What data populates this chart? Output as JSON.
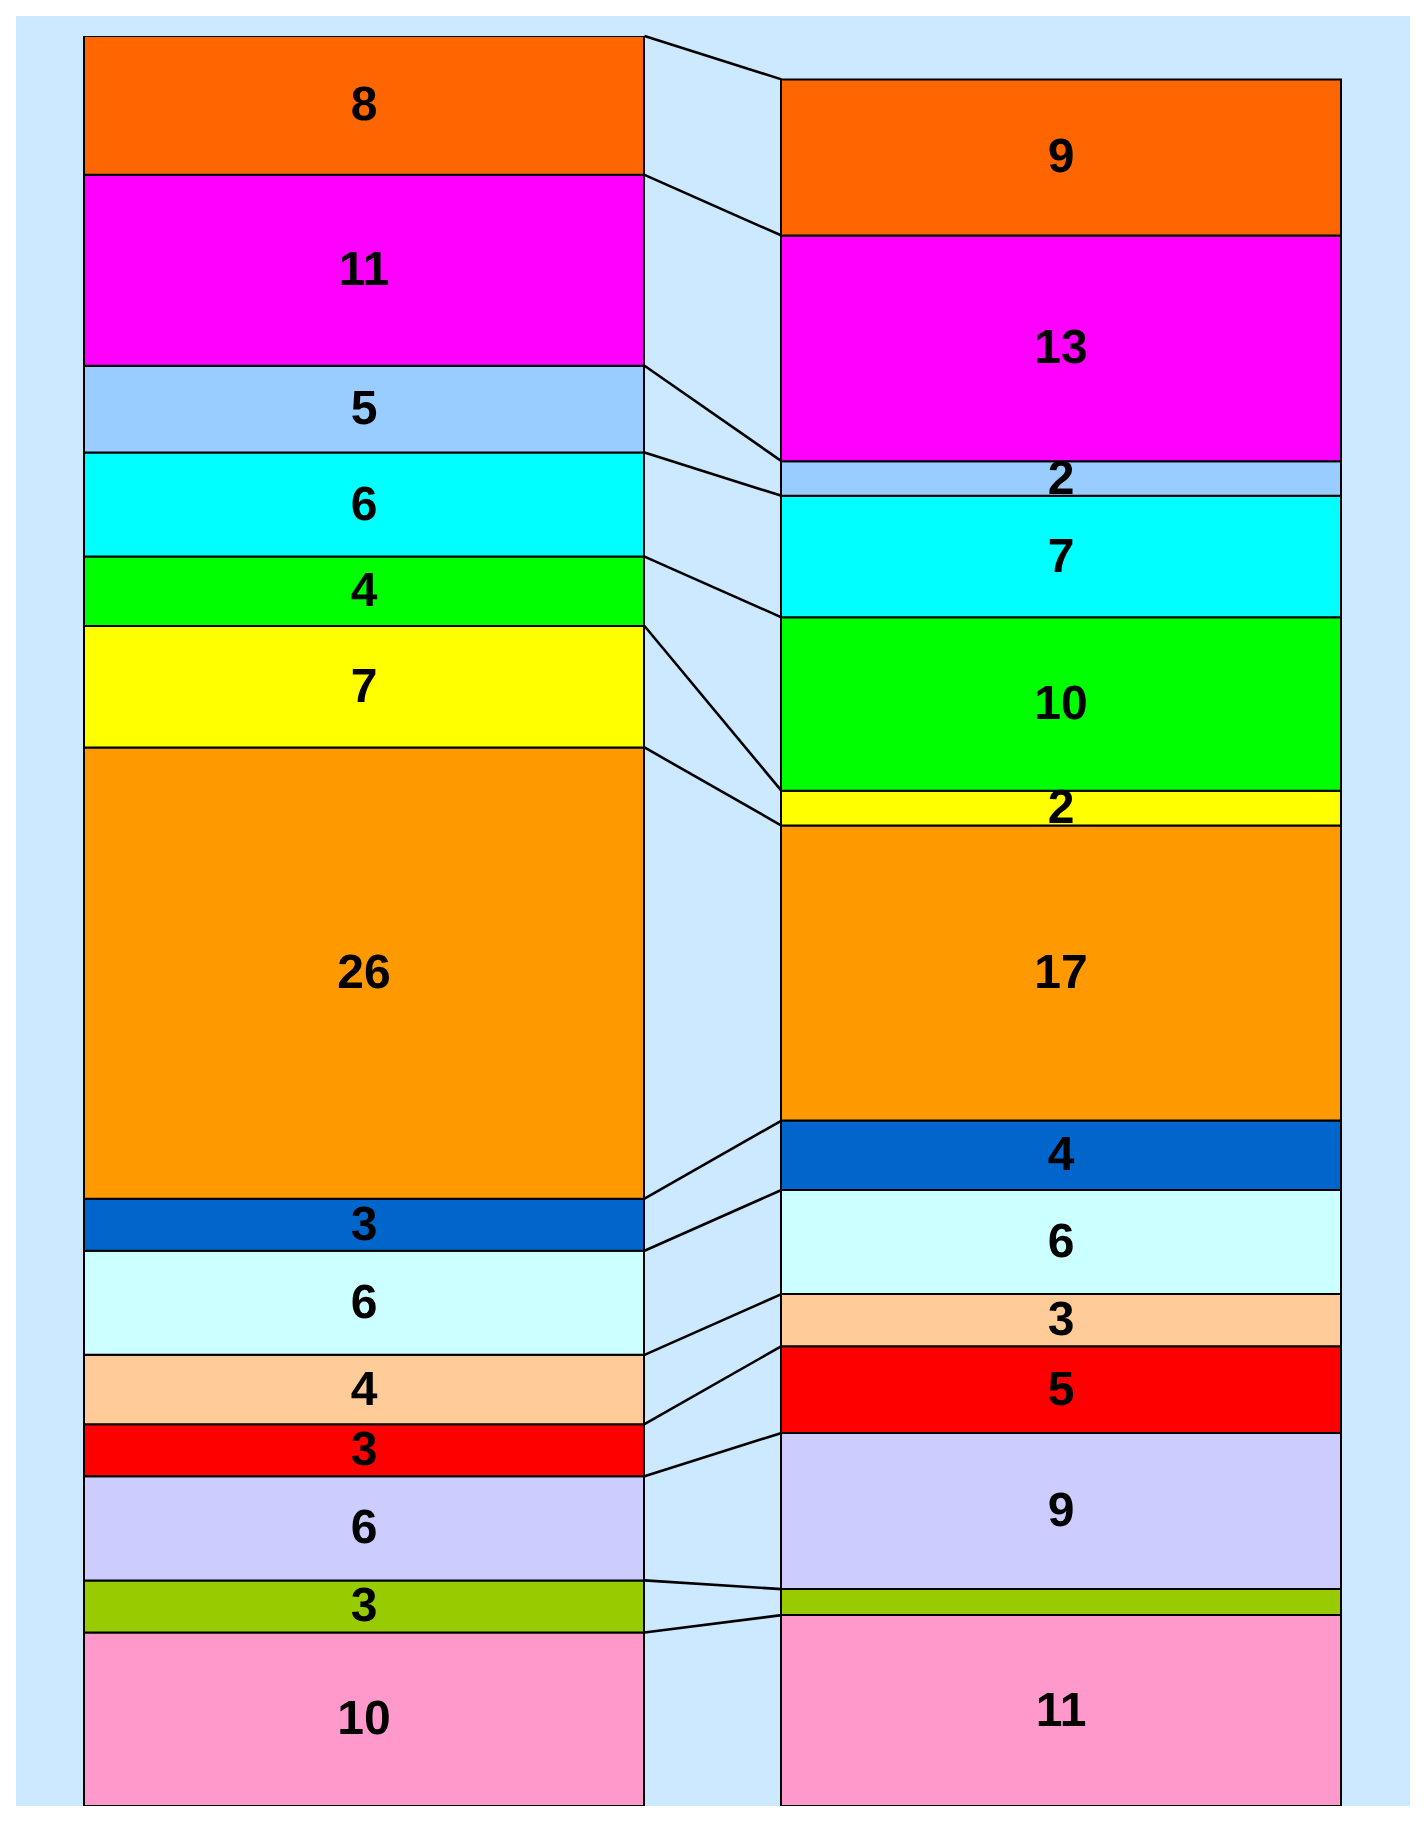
{
  "chart_data": {
    "type": "bar",
    "stacked": true,
    "categories": [
      null,
      null
    ],
    "series": [
      {
        "color": "#ff99cc",
        "values": [
          10,
          11
        ],
        "value_labels": [
          "10",
          "11"
        ]
      },
      {
        "color": "#99cc00",
        "values": [
          3,
          1.5
        ],
        "value_labels": [
          "3",
          null
        ]
      },
      {
        "color": "#ccccff",
        "values": [
          6,
          9
        ],
        "value_labels": [
          "6",
          "9"
        ]
      },
      {
        "color": "#ff0000",
        "values": [
          3,
          5
        ],
        "value_labels": [
          "3",
          "5"
        ]
      },
      {
        "color": "#ffcc99",
        "values": [
          4,
          3
        ],
        "value_labels": [
          "4",
          "3"
        ]
      },
      {
        "color": "#ccffff",
        "values": [
          6,
          6
        ],
        "value_labels": [
          "6",
          "6"
        ]
      },
      {
        "color": "#0066cc",
        "values": [
          3,
          4
        ],
        "value_labels": [
          "3",
          "4"
        ]
      },
      {
        "color": "#ff9900",
        "values": [
          26,
          17
        ],
        "value_labels": [
          "26",
          "17"
        ]
      },
      {
        "color": "#ffff00",
        "values": [
          7,
          2
        ],
        "value_labels": [
          "7",
          "2"
        ]
      },
      {
        "color": "#00ff00",
        "values": [
          4,
          10
        ],
        "value_labels": [
          "4",
          "10"
        ]
      },
      {
        "color": "#00ffff",
        "values": [
          6,
          7
        ],
        "value_labels": [
          "6",
          "7"
        ]
      },
      {
        "color": "#99ccff",
        "values": [
          5,
          2
        ],
        "value_labels": [
          "5",
          "2"
        ]
      },
      {
        "color": "#ff00ff",
        "values": [
          11,
          13
        ],
        "value_labels": [
          "11",
          "13"
        ]
      },
      {
        "color": "#ff6600",
        "values": [
          8,
          9
        ],
        "value_labels": [
          "8",
          "9"
        ]
      }
    ]
  }
}
